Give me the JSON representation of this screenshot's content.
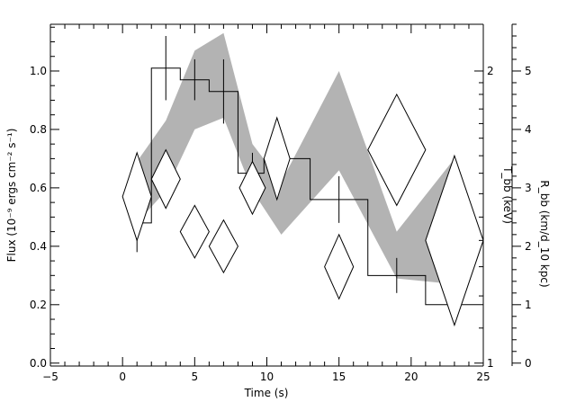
{
  "chart_data": {
    "type": "line",
    "xlabel": "Time (s)",
    "ylabel_left": "Flux (10⁻⁹ ergs cm⁻² s⁻¹)",
    "ylabel_right_inner": "T_bb (keV)",
    "ylabel_right_outer": "R_bb (km/d_10 kpc)",
    "xlim": [
      -5,
      25
    ],
    "ylim": [
      -0.01,
      1.16
    ],
    "x_ticks": [
      -5,
      0,
      5,
      10,
      15,
      20,
      25
    ],
    "x_tick_labels": [
      "−5",
      "0",
      "5",
      "10",
      "15",
      "20",
      "25"
    ],
    "y_ticks": [
      0.0,
      0.2,
      0.4,
      0.6,
      0.8,
      1.0
    ],
    "y_tick_labels": [
      "0.0",
      "0.2",
      "0.4",
      "0.6",
      "0.8",
      "1.0"
    ],
    "temp_axis": {
      "ticks": [
        1,
        2
      ],
      "tick_labels": [
        "1",
        "2"
      ],
      "label_y_values": [
        0.0,
        1.0
      ]
    },
    "radius_axis": {
      "ticks": [
        0,
        1,
        2,
        3,
        4,
        5
      ],
      "tick_labels": [
        "0",
        "1",
        "2",
        "3",
        "4",
        "5"
      ],
      "label_y_values": [
        0.0,
        0.2,
        0.4,
        0.6,
        0.8,
        1.0
      ]
    },
    "flux_bins": [
      {
        "x0": 0.9,
        "x1": 2.0,
        "y": 0.48,
        "yerr": 0.1,
        "xc": 1.0
      },
      {
        "x0": 2.0,
        "x1": 4.0,
        "y": 1.01,
        "yerr": 0.11,
        "xc": 3.0
      },
      {
        "x0": 4.0,
        "x1": 6.0,
        "y": 0.97,
        "yerr": 0.07,
        "xc": 5.0
      },
      {
        "x0": 6.0,
        "x1": 8.0,
        "y": 0.93,
        "yerr": 0.11,
        "xc": 7.0
      },
      {
        "x0": 8.0,
        "x1": 9.8,
        "y": 0.65,
        "yerr": 0.07,
        "xc": 9.0
      },
      {
        "x0": 9.8,
        "x1": 13.0,
        "y": 0.7,
        "yerr": 0.08,
        "xc": 10.7
      },
      {
        "x0": 13.0,
        "x1": 17.0,
        "y": 0.56,
        "yerr": 0.08,
        "xc": 15.0
      },
      {
        "x0": 17.0,
        "x1": 21.0,
        "y": 0.3,
        "yerr": 0.06,
        "xc": 19.0
      },
      {
        "x0": 21.0,
        "x1": 25.0,
        "y": 0.2,
        "yerr": 0.06,
        "xc": 23.0
      }
    ],
    "temperature_diamonds": [
      {
        "x": 1.0,
        "y": 0.57,
        "xhw": 1.0,
        "yhw": 0.15
      },
      {
        "x": 3.0,
        "y": 0.63,
        "xhw": 1.0,
        "yhw": 0.1
      },
      {
        "x": 5.0,
        "y": 0.45,
        "xhw": 1.0,
        "yhw": 0.09
      },
      {
        "x": 7.0,
        "y": 0.4,
        "xhw": 1.0,
        "yhw": 0.09
      },
      {
        "x": 9.0,
        "y": 0.6,
        "xhw": 0.9,
        "yhw": 0.09
      },
      {
        "x": 10.7,
        "y": 0.7,
        "xhw": 0.9,
        "yhw": 0.14
      },
      {
        "x": 15.0,
        "y": 0.33,
        "xhw": 1.0,
        "yhw": 0.11
      },
      {
        "x": 19.0,
        "y": 0.73,
        "xhw": 2.0,
        "yhw": 0.19
      },
      {
        "x": 23.0,
        "y": 0.42,
        "xhw": 2.0,
        "yhw": 0.29
      }
    ],
    "radius_band": {
      "x": [
        1.0,
        3.0,
        5.0,
        7.0,
        9.0,
        11.0,
        15.0,
        19.0,
        23.0
      ],
      "upper": [
        0.69,
        0.83,
        1.07,
        1.13,
        0.75,
        0.62,
        1.0,
        0.45,
        0.7
      ],
      "lower": [
        0.48,
        0.59,
        0.8,
        0.84,
        0.59,
        0.44,
        0.66,
        0.29,
        0.27
      ]
    }
  }
}
